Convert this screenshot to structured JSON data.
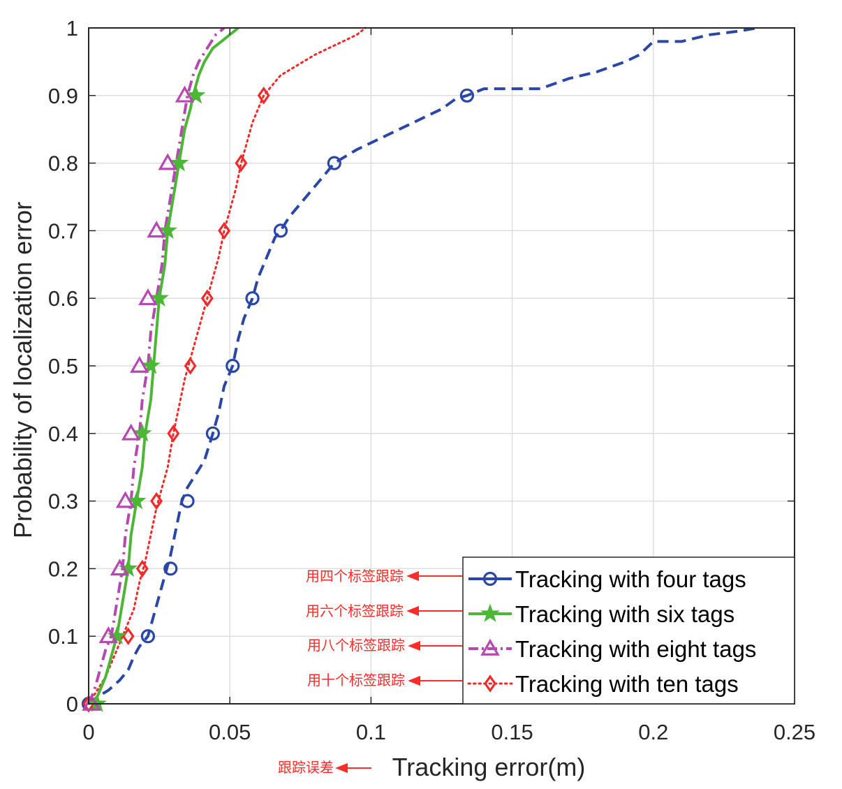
{
  "chart_data": {
    "type": "line",
    "title": "",
    "xlabel": "Tracking error(m)",
    "ylabel": "Probability of localization error",
    "xlim": [
      0,
      0.25
    ],
    "ylim": [
      0,
      1
    ],
    "xticks": [
      "0",
      "0.05",
      "0.1",
      "0.15",
      "0.2",
      "0.25"
    ],
    "yticks": [
      "0",
      "0.1",
      "0.2",
      "0.3",
      "0.4",
      "0.5",
      "0.6",
      "0.7",
      "0.8",
      "0.9",
      "1"
    ],
    "grid": true,
    "legend_position": "bottom-right",
    "series": [
      {
        "name": "Tracking with four tags",
        "color": "#2b47a6",
        "dash": "dashed",
        "marker": "circle",
        "x": [
          0,
          0.003,
          0.007,
          0.011,
          0.014,
          0.016,
          0.018,
          0.021,
          0.023,
          0.025,
          0.027,
          0.029,
          0.031,
          0.033,
          0.035,
          0.038,
          0.041,
          0.044,
          0.046,
          0.048,
          0.051,
          0.053,
          0.055,
          0.058,
          0.06,
          0.063,
          0.066,
          0.068,
          0.071,
          0.075,
          0.079,
          0.083,
          0.087,
          0.091,
          0.095,
          0.1,
          0.105,
          0.11,
          0.115,
          0.12,
          0.125,
          0.13,
          0.134,
          0.14,
          0.15,
          0.16,
          0.17,
          0.18,
          0.19,
          0.195,
          0.2,
          0.21,
          0.22,
          0.23,
          0.237
        ],
        "y": [
          0,
          0.01,
          0.02,
          0.035,
          0.05,
          0.07,
          0.085,
          0.1,
          0.13,
          0.16,
          0.19,
          0.22,
          0.26,
          0.3,
          0.32,
          0.34,
          0.36,
          0.4,
          0.43,
          0.47,
          0.5,
          0.54,
          0.57,
          0.6,
          0.63,
          0.66,
          0.69,
          0.7,
          0.72,
          0.74,
          0.76,
          0.78,
          0.8,
          0.81,
          0.82,
          0.83,
          0.84,
          0.85,
          0.86,
          0.87,
          0.88,
          0.895,
          0.9,
          0.91,
          0.91,
          0.91,
          0.925,
          0.935,
          0.95,
          0.96,
          0.98,
          0.98,
          0.99,
          0.995,
          1.0
        ],
        "markers_x": [
          0,
          0.021,
          0.029,
          0.035,
          0.044,
          0.051,
          0.058,
          0.068,
          0.087,
          0.134
        ],
        "markers_y": [
          0,
          0.1,
          0.2,
          0.3,
          0.4,
          0.5,
          0.6,
          0.7,
          0.8,
          0.9
        ]
      },
      {
        "name": "Tracking with six tags",
        "color": "#4cb636",
        "dash": "solid",
        "marker": "star",
        "x": [
          0,
          0.003,
          0.006,
          0.008,
          0.01,
          0.012,
          0.014,
          0.015,
          0.017,
          0.019,
          0.02,
          0.022,
          0.023,
          0.025,
          0.027,
          0.028,
          0.03,
          0.032,
          0.034,
          0.036,
          0.037,
          0.039,
          0.041,
          0.044,
          0.047,
          0.05,
          0.053
        ],
        "y": [
          0,
          0.01,
          0.04,
          0.07,
          0.1,
          0.15,
          0.2,
          0.25,
          0.3,
          0.35,
          0.4,
          0.45,
          0.5,
          0.6,
          0.65,
          0.7,
          0.75,
          0.8,
          0.85,
          0.88,
          0.9,
          0.93,
          0.95,
          0.97,
          0.98,
          0.99,
          1.0
        ],
        "markers_x": [
          0.003,
          0.01,
          0.014,
          0.017,
          0.019,
          0.022,
          0.025,
          0.028,
          0.032,
          0.038
        ],
        "markers_y": [
          0,
          0.1,
          0.2,
          0.3,
          0.4,
          0.5,
          0.6,
          0.7,
          0.8,
          0.9
        ]
      },
      {
        "name": "Tracking with eight tags",
        "color": "#b548b1",
        "dash": "dashdot",
        "marker": "triangle",
        "x": [
          0,
          0.002,
          0.004,
          0.006,
          0.008,
          0.01,
          0.012,
          0.013,
          0.015,
          0.016,
          0.018,
          0.019,
          0.021,
          0.022,
          0.024,
          0.026,
          0.027,
          0.029,
          0.031,
          0.033,
          0.035,
          0.037,
          0.039,
          0.042,
          0.045,
          0.048
        ],
        "y": [
          0,
          0.02,
          0.05,
          0.08,
          0.1,
          0.15,
          0.2,
          0.25,
          0.3,
          0.35,
          0.4,
          0.45,
          0.5,
          0.55,
          0.6,
          0.65,
          0.7,
          0.75,
          0.8,
          0.85,
          0.9,
          0.93,
          0.95,
          0.97,
          0.99,
          1.0
        ],
        "markers_x": [
          0.001,
          0.007,
          0.011,
          0.013,
          0.015,
          0.018,
          0.021,
          0.024,
          0.028,
          0.034
        ],
        "markers_y": [
          0,
          0.1,
          0.2,
          0.3,
          0.4,
          0.5,
          0.6,
          0.7,
          0.8,
          0.9
        ]
      },
      {
        "name": "Tracking with ten tags",
        "color": "#ee2a2a",
        "dash": "dotted",
        "marker": "diamond",
        "x": [
          0,
          0.003,
          0.006,
          0.009,
          0.011,
          0.013,
          0.016,
          0.018,
          0.02,
          0.022,
          0.024,
          0.026,
          0.028,
          0.03,
          0.032,
          0.034,
          0.036,
          0.038,
          0.04,
          0.042,
          0.044,
          0.046,
          0.048,
          0.05,
          0.052,
          0.054,
          0.056,
          0.058,
          0.06,
          0.062,
          0.064,
          0.066,
          0.068,
          0.072,
          0.076,
          0.08,
          0.085,
          0.09,
          0.095,
          0.098
        ],
        "y": [
          0,
          0.02,
          0.04,
          0.07,
          0.09,
          0.11,
          0.14,
          0.18,
          0.21,
          0.25,
          0.29,
          0.32,
          0.35,
          0.4,
          0.44,
          0.48,
          0.51,
          0.54,
          0.57,
          0.6,
          0.63,
          0.66,
          0.7,
          0.73,
          0.76,
          0.8,
          0.83,
          0.86,
          0.88,
          0.9,
          0.91,
          0.92,
          0.93,
          0.94,
          0.95,
          0.96,
          0.97,
          0.98,
          0.99,
          1.0
        ],
        "markers_x": [
          0,
          0.014,
          0.019,
          0.024,
          0.03,
          0.036,
          0.042,
          0.048,
          0.054,
          0.062
        ],
        "markers_y": [
          0,
          0.1,
          0.2,
          0.3,
          0.4,
          0.5,
          0.6,
          0.7,
          0.8,
          0.9
        ]
      }
    ]
  },
  "annotations": {
    "legend_notes": [
      "用四个标签跟踪",
      "用六个标签跟踪",
      "用八个标签跟踪",
      "用十个标签跟踪"
    ],
    "xlabel_note": "跟踪误差",
    "color": "#ff2a2a"
  }
}
